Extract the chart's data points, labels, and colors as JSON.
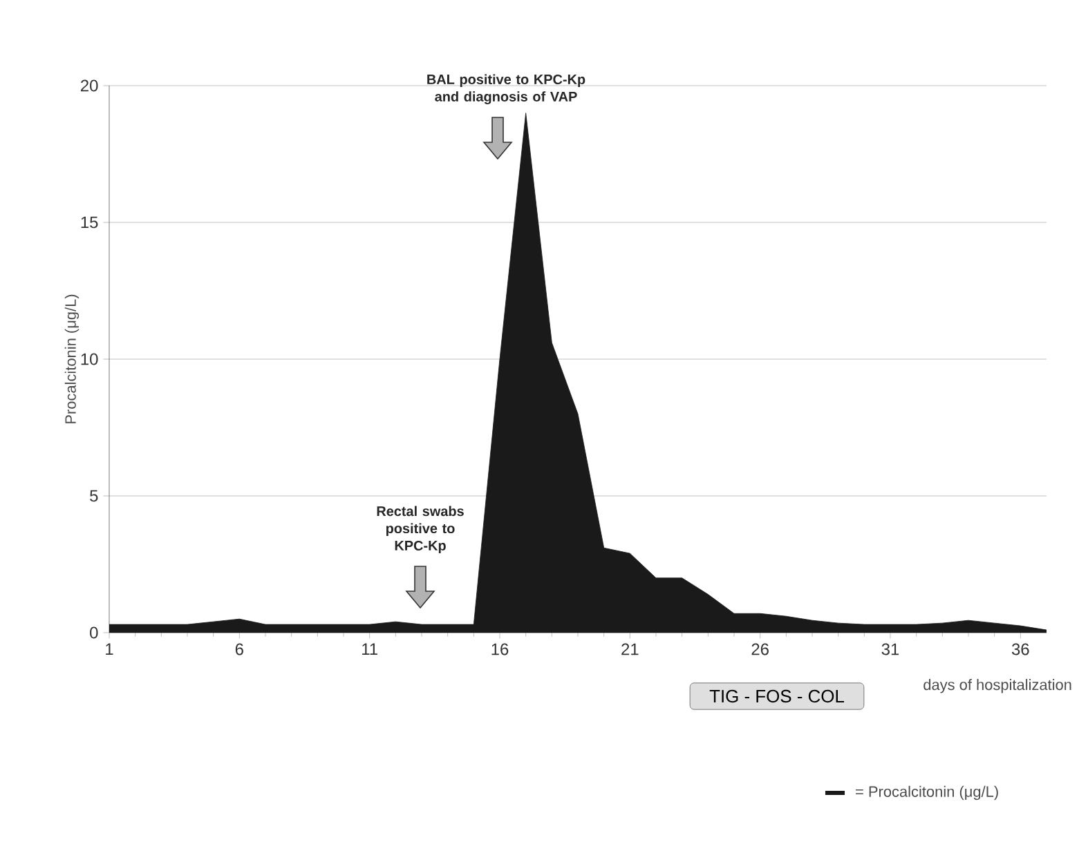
{
  "chart_data": {
    "type": "area",
    "x": [
      1,
      2,
      3,
      4,
      5,
      6,
      7,
      8,
      9,
      10,
      11,
      12,
      13,
      14,
      15,
      16,
      17,
      18,
      19,
      20,
      21,
      22,
      23,
      24,
      25,
      26,
      27,
      28,
      29,
      30,
      31,
      32,
      33,
      34,
      35,
      36,
      37
    ],
    "series": [
      {
        "name": "= Procalcitonin (μg/L)",
        "color": "#1a1a1a",
        "values": [
          0.3,
          0.3,
          0.3,
          0.3,
          0.4,
          0.5,
          0.3,
          0.3,
          0.3,
          0.3,
          0.3,
          0.4,
          0.3,
          0.3,
          0.3,
          10,
          19,
          10.6,
          8,
          3.1,
          2.9,
          2,
          2,
          1.4,
          0.7,
          0.7,
          0.6,
          0.45,
          0.35,
          0.3,
          0.3,
          0.3,
          0.35,
          0.45,
          0.35,
          0.25,
          0.1
        ]
      }
    ],
    "xlim": [
      1,
      37
    ],
    "xticks": [
      1,
      6,
      11,
      16,
      21,
      26,
      31,
      36
    ],
    "ylim": [
      0,
      20
    ],
    "yticks": [
      0,
      5,
      10,
      15,
      20
    ],
    "ylabel": "Procalcitonin (μg/L)",
    "xlabel": "days of hospitalization",
    "grid": "y",
    "legend": "bottom right",
    "annotations": [
      "BAL positive to KPC-Kp and diagnosis of VAP",
      "Rectal swabs positive to KPC-Kp",
      "TIG - FOS - COL"
    ]
  }
}
